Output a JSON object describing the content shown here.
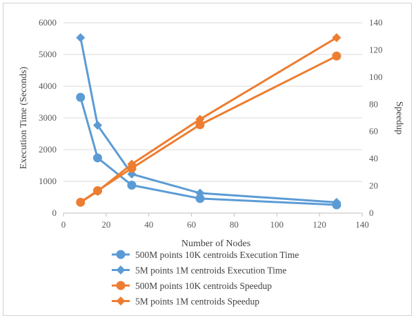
{
  "chart_data": {
    "type": "line",
    "xlabel": "Number of Nodes",
    "ylabel": "Execution Time (Seconds)",
    "y2label": "Speedup",
    "xlim": [
      0,
      140
    ],
    "ylim": [
      0,
      6000
    ],
    "y2lim": [
      0,
      140
    ],
    "x_ticks": [
      "0",
      "20",
      "40",
      "60",
      "80",
      "100",
      "120",
      "140"
    ],
    "y_ticks": [
      "0",
      "1000",
      "2000",
      "3000",
      "4000",
      "5000",
      "6000"
    ],
    "y2_ticks": [
      "0",
      "20",
      "40",
      "60",
      "80",
      "100",
      "120",
      "140"
    ],
    "grid": true,
    "legend_position": "bottom",
    "series": [
      {
        "name": "500M points 10K centroids Execution Time",
        "axis": "left",
        "color": "#5B9BD5",
        "marker": "circle",
        "x": [
          8,
          16,
          32,
          64,
          128
        ],
        "values": [
          3650,
          1740,
          880,
          460,
          260
        ]
      },
      {
        "name": "5M points 1M centroids Execution Time",
        "axis": "left",
        "color": "#5B9BD5",
        "marker": "diamond",
        "x": [
          8,
          16,
          32,
          64,
          128
        ],
        "values": [
          5530,
          2770,
          1230,
          630,
          340
        ]
      },
      {
        "name": "500M points 10K centroids Speedup",
        "axis": "right",
        "color": "#ED7D31",
        "marker": "circle",
        "x": [
          8,
          16,
          32,
          64,
          128
        ],
        "values": [
          8,
          16.5,
          33,
          65,
          115.5
        ]
      },
      {
        "name": "5M points 1M centroids Speedup",
        "axis": "right",
        "color": "#ED7D31",
        "marker": "diamond",
        "x": [
          8,
          16,
          32,
          64,
          128
        ],
        "values": [
          8,
          16,
          36,
          69,
          129
        ]
      }
    ]
  }
}
